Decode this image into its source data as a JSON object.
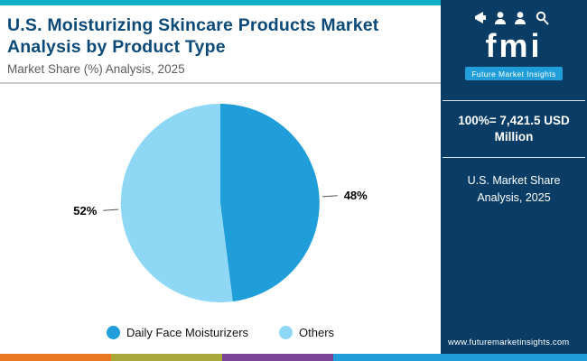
{
  "header": {
    "title": "U.S. Moisturizing Skincare Products Market Analysis by Product Type",
    "subtitle": "Market Share (%) Analysis, 2025"
  },
  "chart_data": {
    "type": "pie",
    "title": "U.S. Moisturizing Skincare Products Market Analysis by Product Type",
    "subtitle": "Market Share (%) Analysis, 2025",
    "labels": [
      "Daily Face Moisturizers",
      "Others"
    ],
    "values": [
      48,
      52
    ],
    "unit": "%",
    "data_labels": [
      "48%",
      "52%"
    ],
    "colors": [
      "#1f9ed9",
      "#8ed8f6"
    ],
    "legend_position": "bottom",
    "start_angle_deg": 0
  },
  "sidebar": {
    "logo_text": "fmi",
    "logo_caption": "Future Market Insights",
    "stat": "100%= 7,421.5 USD Million",
    "note": "U.S. Market Share Analysis, 2025",
    "website": "www.futuremarketinsights.com"
  },
  "theme": {
    "sidebar_bg": "#0a3d66",
    "top_strip": "#0db0c6",
    "title_color": "#0b4a78",
    "bottom_bars": [
      "#e87722",
      "#a9a83b",
      "#7a4595",
      "#1f9ed9"
    ]
  }
}
